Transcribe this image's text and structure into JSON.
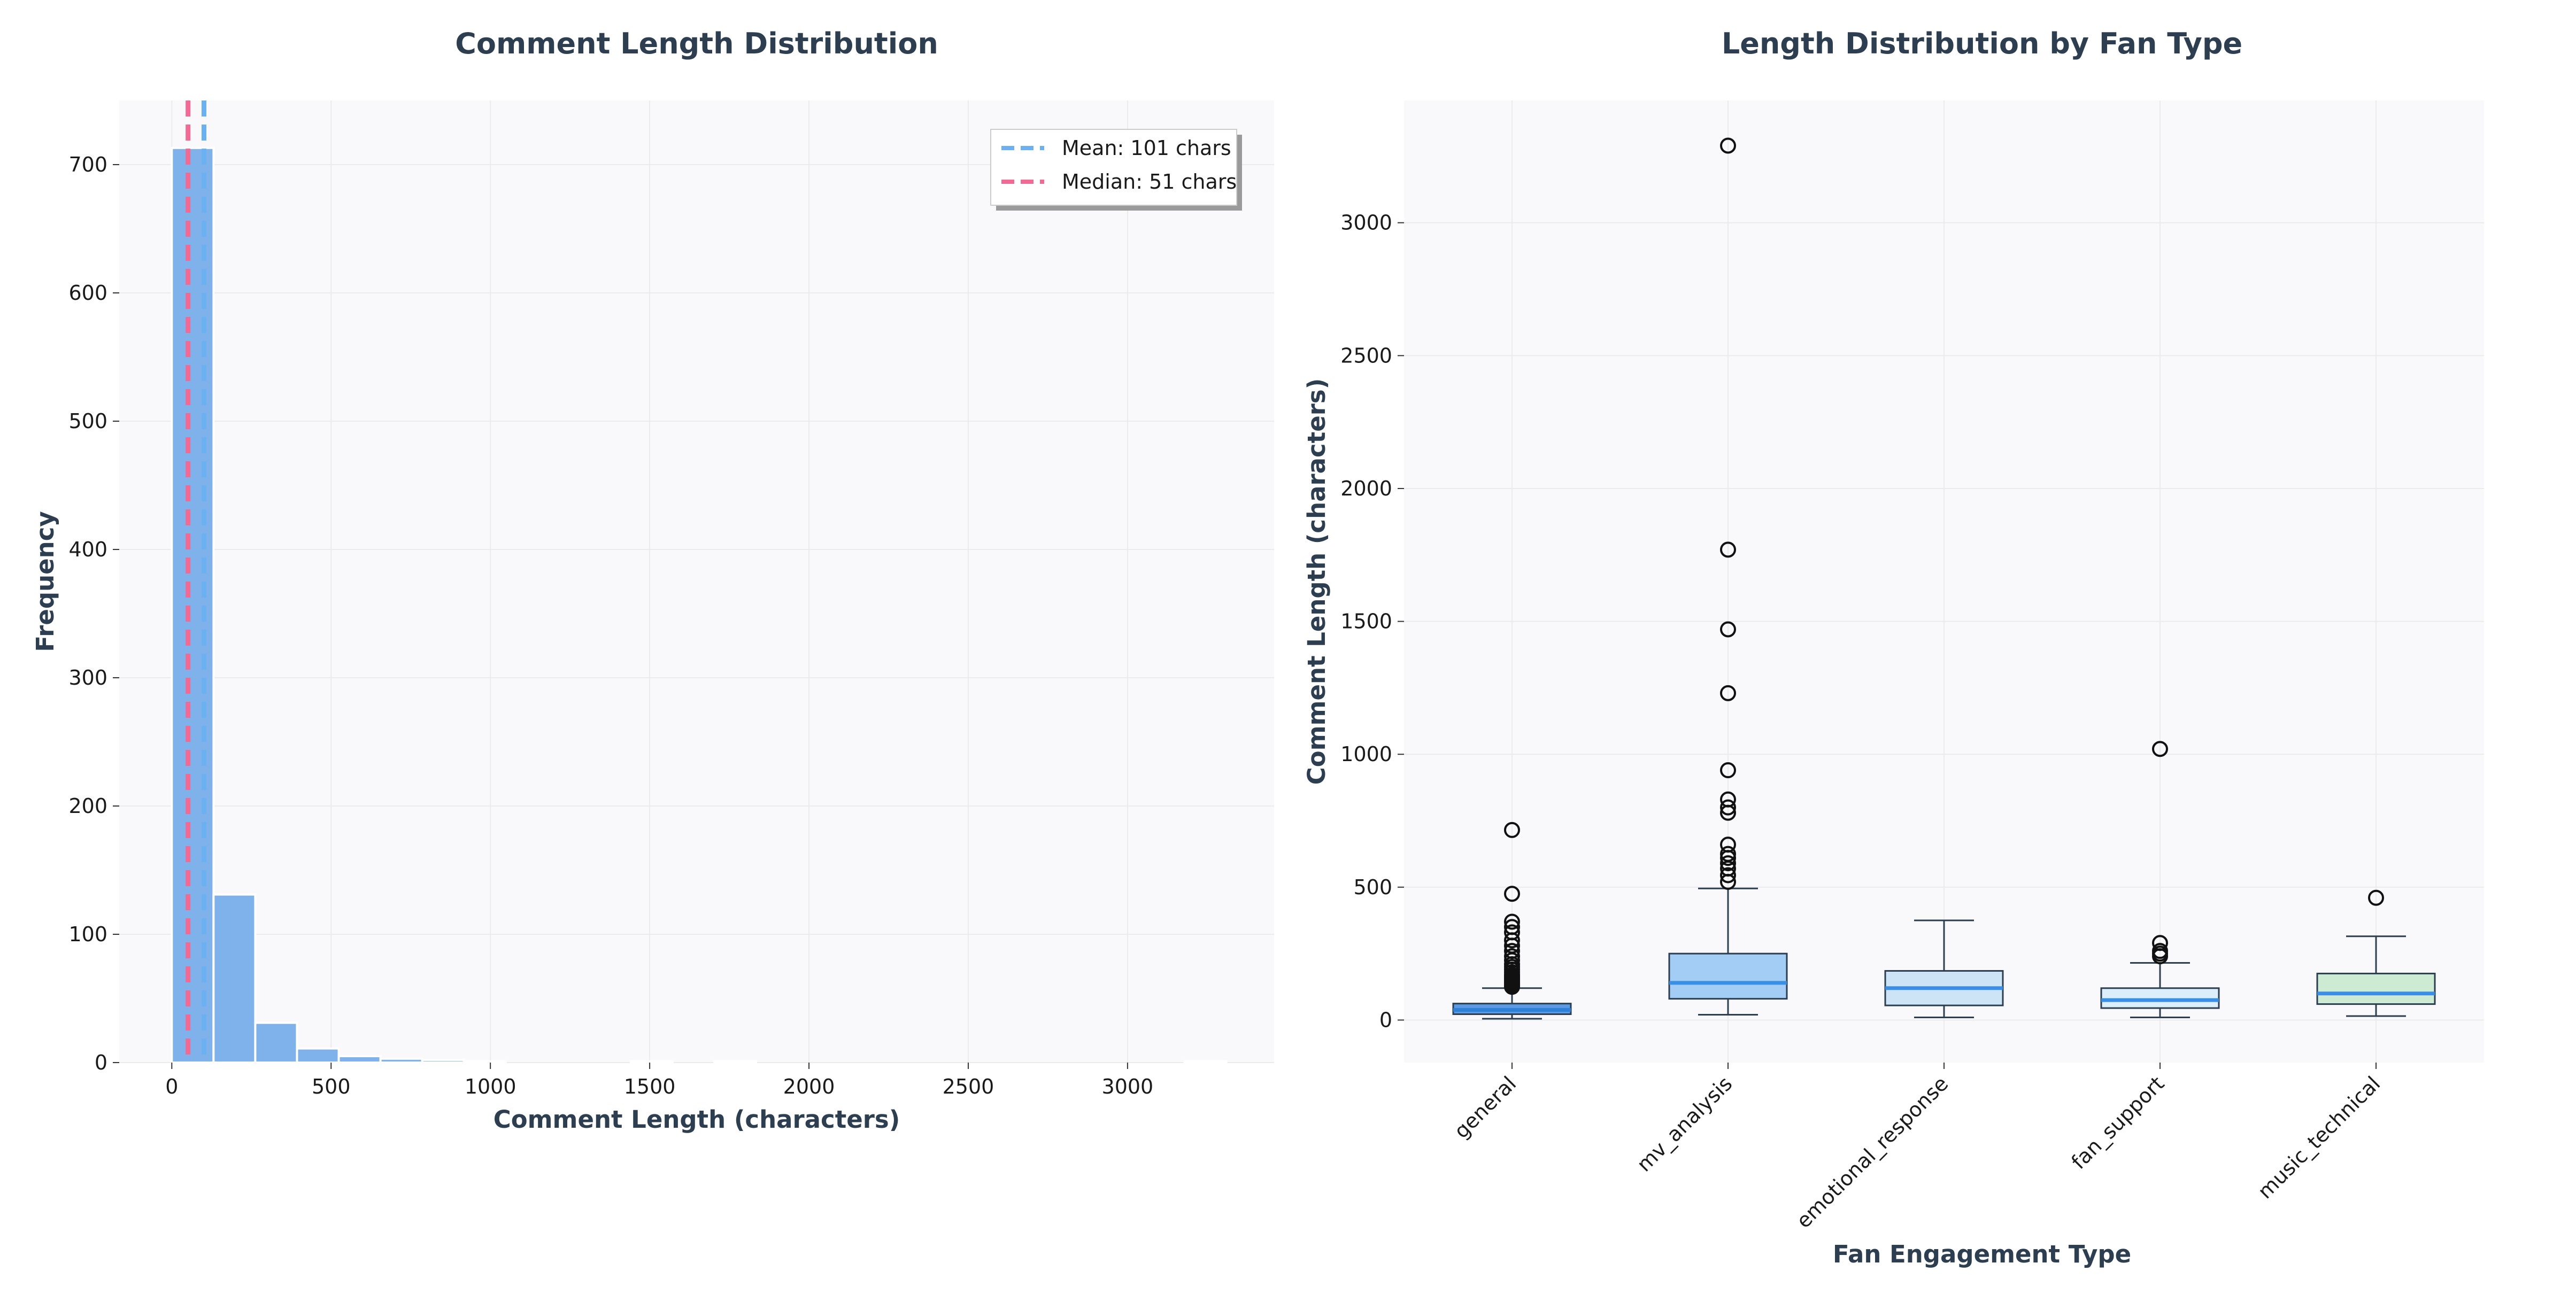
{
  "chart_data": [
    {
      "type": "bar",
      "title": "Comment Length Distribution",
      "xlabel": "Comment Length (characters)",
      "ylabel": "Frequency",
      "xlim": [
        -165,
        3460
      ],
      "ylim": [
        0,
        750
      ],
      "xticks": [
        0,
        500,
        1000,
        1500,
        2000,
        2500,
        3000
      ],
      "yticks": [
        0,
        100,
        200,
        300,
        400,
        500,
        600,
        700
      ],
      "bin_width": 131,
      "bins": [
        {
          "x0": 0,
          "x1": 131,
          "count": 713
        },
        {
          "x0": 131,
          "x1": 262,
          "count": 131
        },
        {
          "x0": 262,
          "x1": 393,
          "count": 31
        },
        {
          "x0": 393,
          "x1": 524,
          "count": 11
        },
        {
          "x0": 524,
          "x1": 655,
          "count": 5
        },
        {
          "x0": 655,
          "x1": 786,
          "count": 3
        },
        {
          "x0": 786,
          "x1": 917,
          "count": 2
        },
        {
          "x0": 917,
          "x1": 1048,
          "count": 1
        },
        {
          "x0": 1048,
          "x1": 1179,
          "count": 0
        },
        {
          "x0": 1179,
          "x1": 1310,
          "count": 0
        },
        {
          "x0": 1310,
          "x1": 1441,
          "count": 0
        },
        {
          "x0": 1441,
          "x1": 1572,
          "count": 1
        },
        {
          "x0": 1572,
          "x1": 1703,
          "count": 0
        },
        {
          "x0": 1703,
          "x1": 1834,
          "count": 1
        },
        {
          "x0": 3179,
          "x1": 3310,
          "count": 1
        }
      ],
      "bar_color": "#7fb2ea",
      "reference_lines": [
        {
          "label": "Mean: 101 chars",
          "value": 101,
          "color": "#6bb0f0"
        },
        {
          "label": "Median: 51 chars",
          "value": 51,
          "color": "#f06a93"
        }
      ],
      "legend_position": "top-right",
      "grid": true
    },
    {
      "type": "box",
      "title": "Length Distribution by Fan Type",
      "xlabel": "Fan Engagement Type",
      "ylabel": "Comment Length (characters)",
      "ylim": [
        -160,
        3460
      ],
      "yticks": [
        0,
        500,
        1000,
        1500,
        2000,
        2500,
        3000
      ],
      "grid": true,
      "categories": [
        "general",
        "mv_analysis",
        "emotional_response",
        "fan_support",
        "music_technical"
      ],
      "boxes": [
        {
          "category": "general",
          "whisker_low": 5,
          "q1": 22,
          "median": 38,
          "q3": 62,
          "whisker_high": 120,
          "outliers": [
            125,
            130,
            135,
            140,
            145,
            150,
            155,
            160,
            165,
            170,
            180,
            190,
            200,
            210,
            225,
            240,
            260,
            280,
            300,
            330,
            350,
            370,
            475,
            715
          ],
          "fill": "#5a9be3",
          "median_color": "#2f80d8"
        },
        {
          "category": "mv_analysis",
          "whisker_low": 20,
          "q1": 80,
          "median": 140,
          "q3": 250,
          "whisker_high": 495,
          "outliers": [
            520,
            545,
            570,
            590,
            610,
            625,
            660,
            780,
            800,
            830,
            940,
            1230,
            1470,
            1770,
            3290
          ],
          "fill": "#a3cdf5",
          "median_color": "#3a8ee6"
        },
        {
          "category": "emotional_response",
          "whisker_low": 10,
          "q1": 55,
          "median": 120,
          "q3": 185,
          "whisker_high": 375,
          "outliers": [],
          "fill": "#cde4f7",
          "median_color": "#3a8ee6"
        },
        {
          "category": "fan_support",
          "whisker_low": 10,
          "q1": 45,
          "median": 75,
          "q3": 120,
          "whisker_high": 215,
          "outliers": [
            240,
            250,
            260,
            290,
            1020
          ],
          "fill": "#dbeefa",
          "median_color": "#3a8ee6"
        },
        {
          "category": "music_technical",
          "whisker_low": 15,
          "q1": 60,
          "median": 100,
          "q3": 175,
          "whisker_high": 315,
          "outliers": [
            460
          ],
          "fill": "#cdebd3",
          "median_color": "#3a8ee6"
        }
      ]
    }
  ]
}
